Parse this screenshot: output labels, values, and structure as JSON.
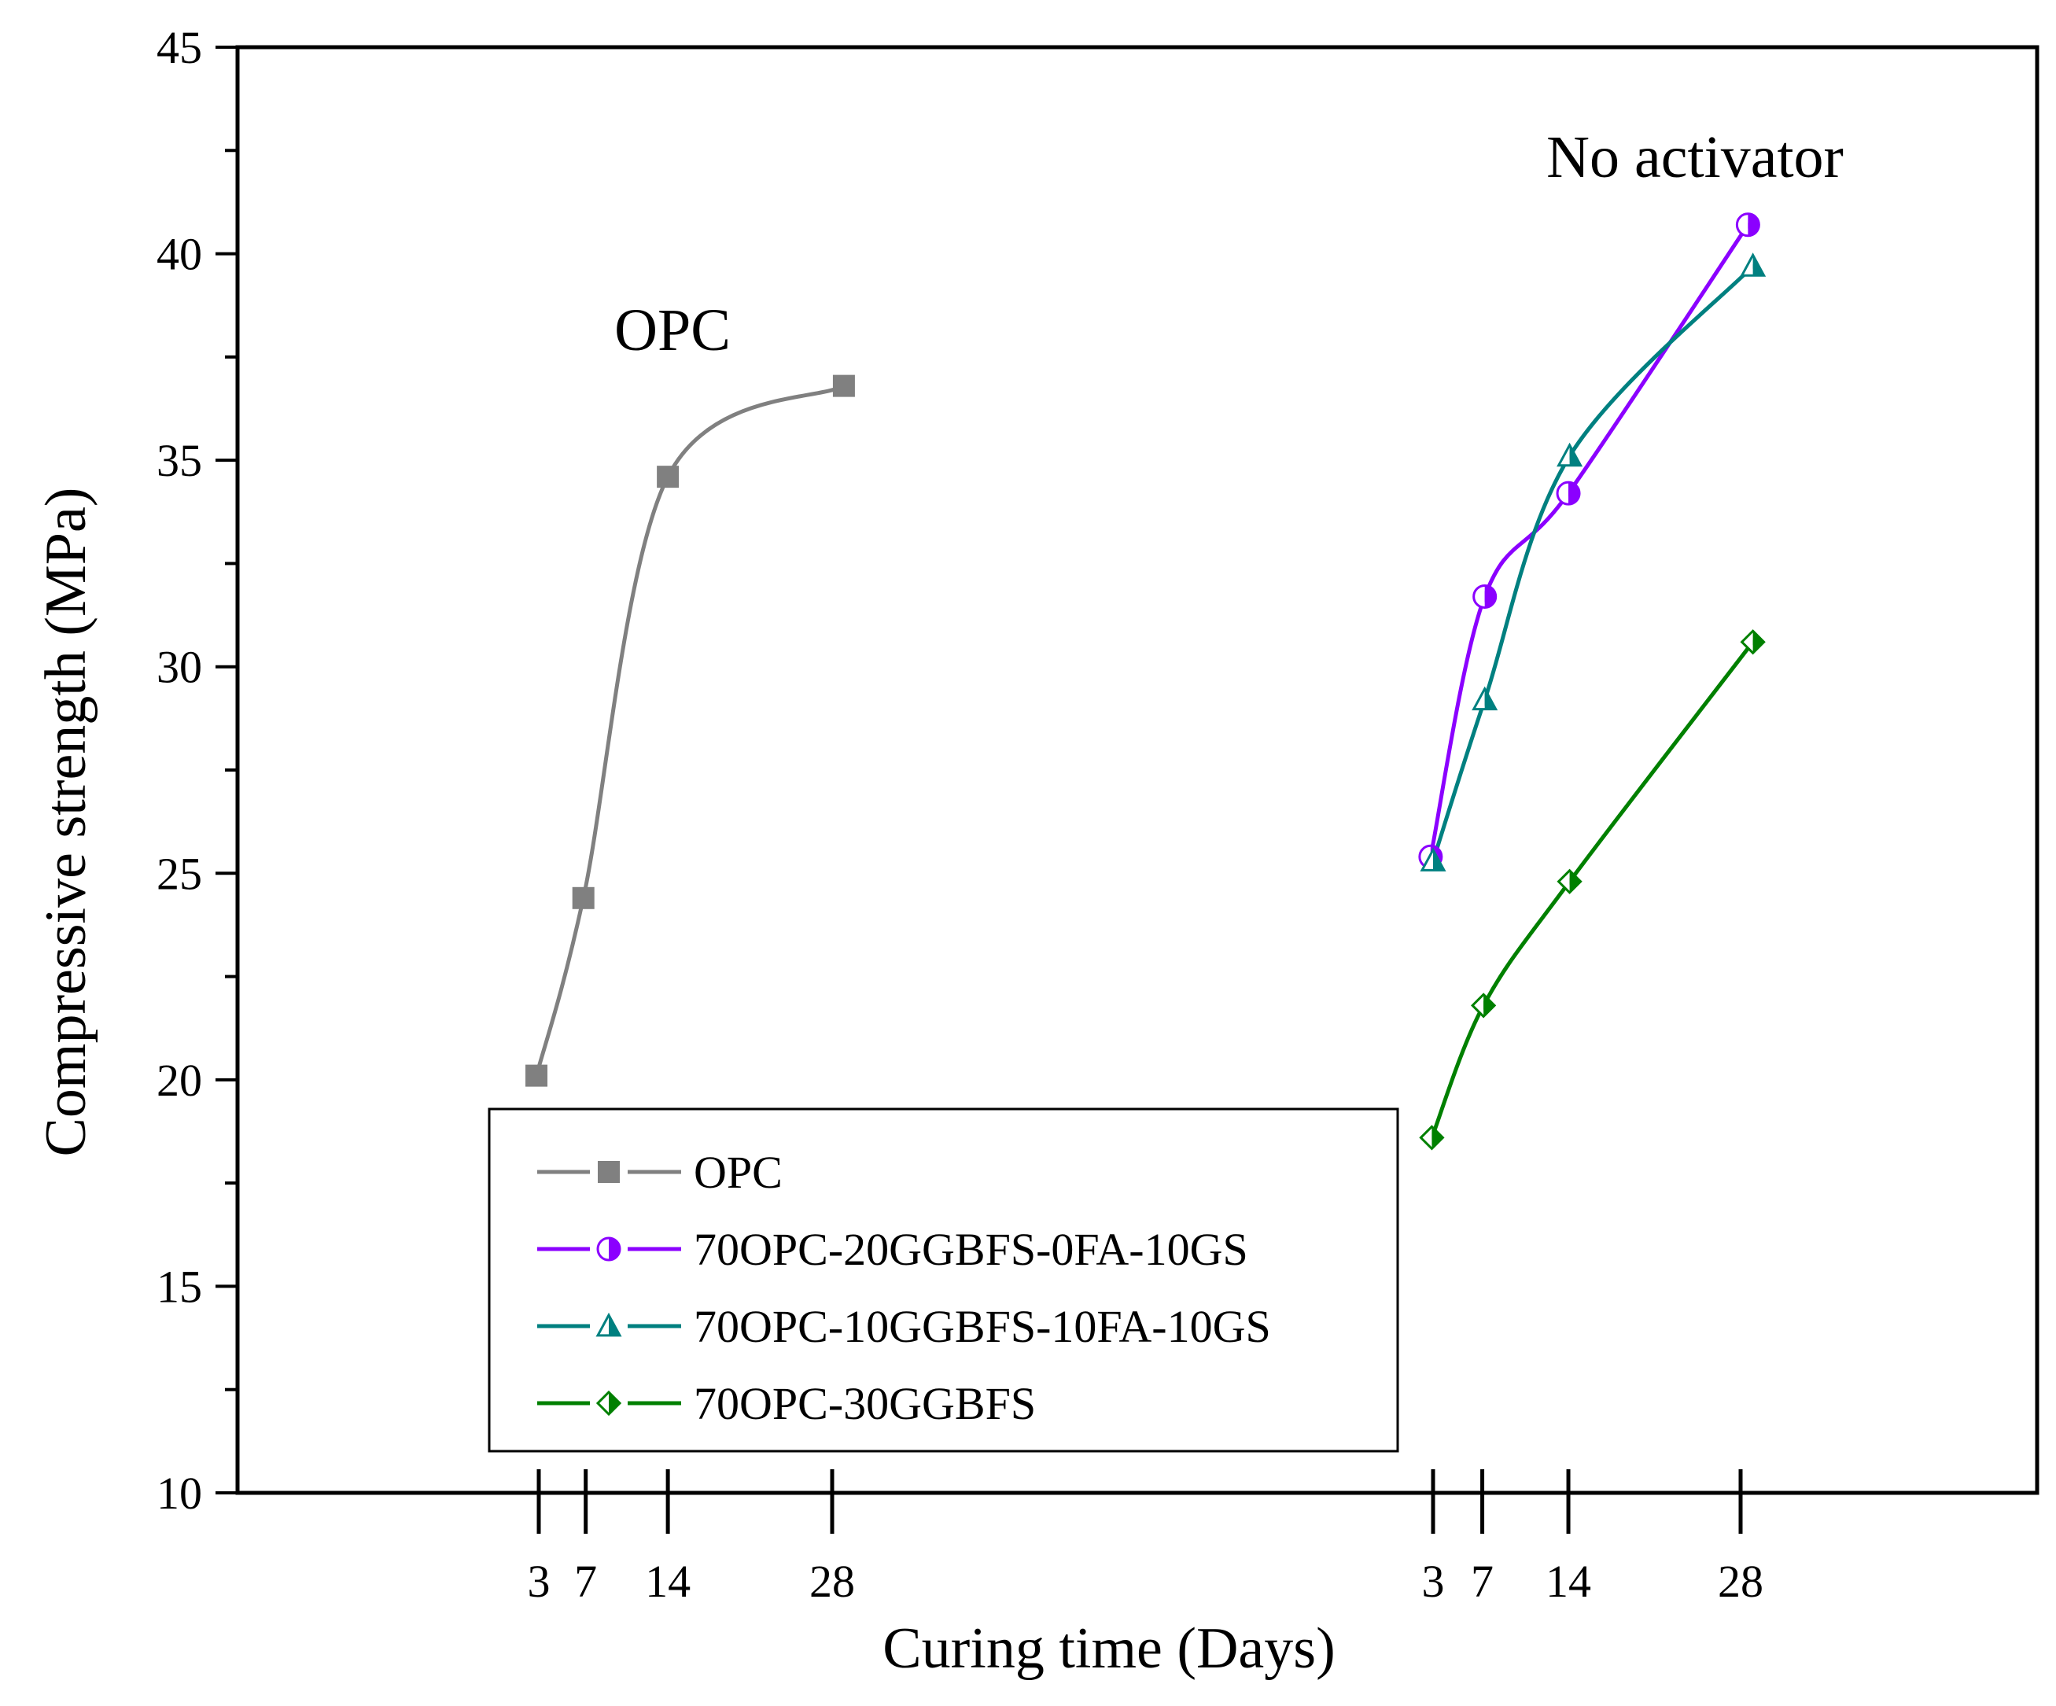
{
  "chart_data": {
    "type": "line",
    "title": "",
    "xlabel": "Curing time (Days)",
    "ylabel": "Compressive strength (MPa)",
    "ylim": [
      10,
      45
    ],
    "yticks": [
      10,
      15,
      20,
      25,
      30,
      35,
      40,
      45
    ],
    "grid": false,
    "legend_position": "bottom-center",
    "x_groups": [
      {
        "name": "OPC",
        "label": "OPC",
        "ticks": [
          3,
          7,
          14,
          28
        ]
      },
      {
        "name": "no-activator",
        "label": "No activator",
        "ticks": [
          3,
          7,
          14,
          28
        ]
      }
    ],
    "series": [
      {
        "name": "OPC",
        "group": 0,
        "color": "#808080",
        "marker": "square",
        "x": [
          2.8,
          6.8,
          14,
          29
        ],
        "y": [
          20.1,
          24.4,
          34.6,
          36.8
        ]
      },
      {
        "name": "70OPC-20GGBFS-0FA-10GS",
        "group": 1,
        "color": "#8B00FF",
        "marker": "circle-half",
        "x": [
          2.8,
          7.2,
          14,
          28.6
        ],
        "y": [
          25.4,
          31.7,
          34.2,
          40.7
        ]
      },
      {
        "name": "70OPC-10GGBFS-10FA-10GS",
        "group": 1,
        "color": "#008080",
        "marker": "triangle-half",
        "x": [
          3,
          7.2,
          14.1,
          29
        ],
        "y": [
          25.3,
          29.2,
          35.1,
          39.7
        ]
      },
      {
        "name": "70OPC-30GGBFS",
        "group": 1,
        "color": "#008000",
        "marker": "diamond-half",
        "x": [
          2.9,
          7.1,
          14.1,
          29
        ],
        "y": [
          18.6,
          21.8,
          24.8,
          30.6
        ]
      }
    ]
  }
}
